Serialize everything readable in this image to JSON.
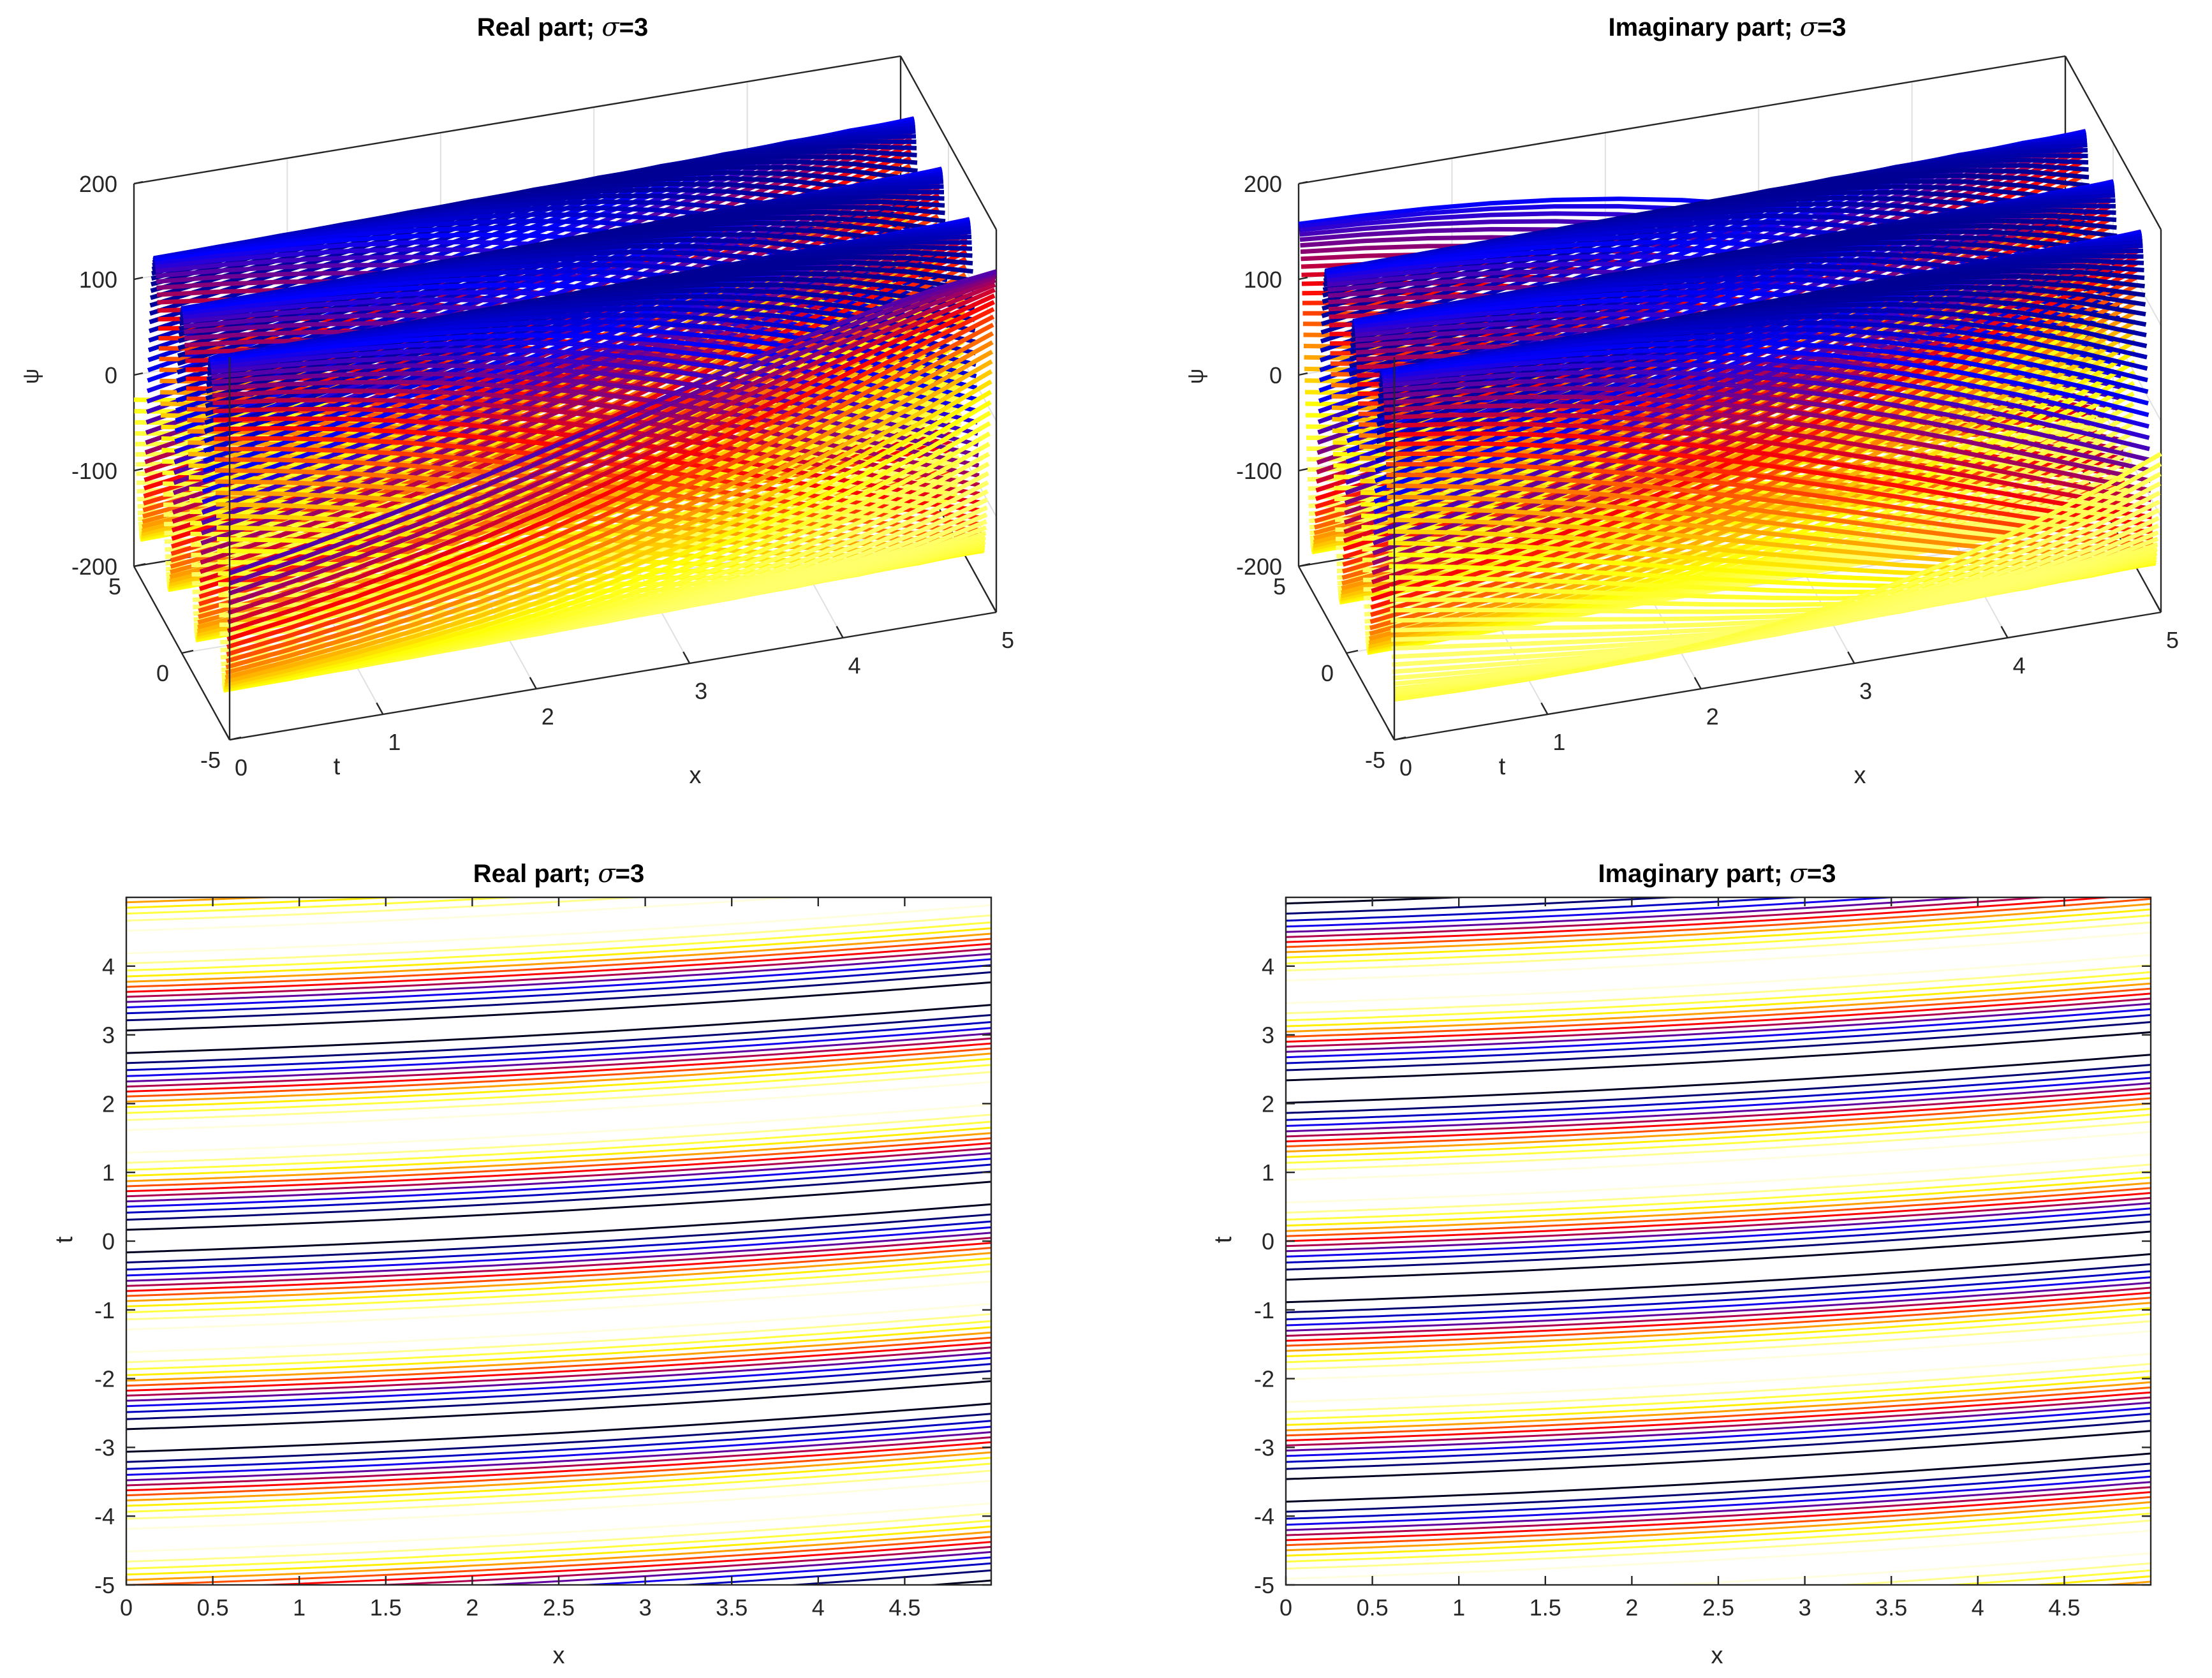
{
  "chart_data": [
    {
      "id": "surf-real",
      "type": "surface",
      "title_prefix": "Real part; ",
      "title_sigma": "σ",
      "title_suffix": "=3",
      "xlabel": "x",
      "ylabel": "t",
      "zlabel": "ψ",
      "xlim": [
        0,
        5
      ],
      "ylim": [
        -5,
        5
      ],
      "zlim": [
        -200,
        200
      ],
      "x_ticks": [
        "0",
        "1",
        "2",
        "3",
        "4",
        "5"
      ],
      "y_ticks": [
        "-5",
        "0",
        "5"
      ],
      "z_ticks": [
        "-200",
        "-100",
        "0",
        "100",
        "200"
      ],
      "amplitude": 160,
      "phase_turns": 0,
      "colormap": "black-blue-red-yellow-white"
    },
    {
      "id": "surf-imag",
      "type": "surface",
      "title_prefix": "Imaginary part; ",
      "title_sigma": "σ",
      "title_suffix": "=3",
      "xlabel": "x",
      "ylabel": "t",
      "zlabel": "ψ",
      "xlim": [
        0,
        5
      ],
      "ylim": [
        -5,
        5
      ],
      "zlim": [
        -200,
        200
      ],
      "x_ticks": [
        "0",
        "1",
        "2",
        "3",
        "4",
        "5"
      ],
      "y_ticks": [
        "-5",
        "0",
        "5"
      ],
      "z_ticks": [
        "-200",
        "-100",
        "0",
        "100",
        "200"
      ],
      "amplitude": 160,
      "phase_turns": 0.25,
      "colormap": "black-blue-red-yellow-white"
    },
    {
      "id": "contour-real",
      "type": "contour",
      "title_prefix": "Real part; ",
      "title_sigma": "σ",
      "title_suffix": "=3",
      "xlabel": "x",
      "ylabel": "t",
      "xlim": [
        0,
        5
      ],
      "ylim": [
        -5,
        5
      ],
      "x_ticks": [
        "0",
        "0.5",
        "1",
        "1.5",
        "2",
        "2.5",
        "3",
        "3.5",
        "4",
        "4.5"
      ],
      "y_ticks": [
        "-5",
        "-4",
        "-3",
        "-2",
        "-1",
        "0",
        "1",
        "2",
        "3",
        "4"
      ],
      "levels": [
        -150,
        -125,
        -100,
        -75,
        -50,
        -25,
        0,
        25,
        50,
        75,
        100,
        125,
        150
      ],
      "amplitude": 160,
      "phase_turns": 0
    },
    {
      "id": "contour-imag",
      "type": "contour",
      "title_prefix": "Imaginary part; ",
      "title_sigma": "σ",
      "title_suffix": "=3",
      "xlabel": "x",
      "ylabel": "t",
      "xlim": [
        0,
        5
      ],
      "ylim": [
        -5,
        5
      ],
      "x_ticks": [
        "0",
        "0.5",
        "1",
        "1.5",
        "2",
        "2.5",
        "3",
        "3.5",
        "4",
        "4.5"
      ],
      "y_ticks": [
        "-5",
        "-4",
        "-3",
        "-2",
        "-1",
        "0",
        "1",
        "2",
        "3",
        "4"
      ],
      "levels": [
        -150,
        -125,
        -100,
        -75,
        -50,
        -25,
        0,
        25,
        50,
        75,
        100,
        125,
        150
      ],
      "amplitude": 160,
      "phase_turns": 0.25
    }
  ],
  "wave": {
    "period_t": 2.9,
    "drift_per_x": 0.08,
    "curvature": 0.012
  },
  "colors": {
    "axis": "#262626",
    "grid": "#e0e0e0",
    "cmap_stops": [
      "#000000",
      "#0000ff",
      "#ff0000",
      "#ffff00",
      "#ffffff"
    ]
  }
}
